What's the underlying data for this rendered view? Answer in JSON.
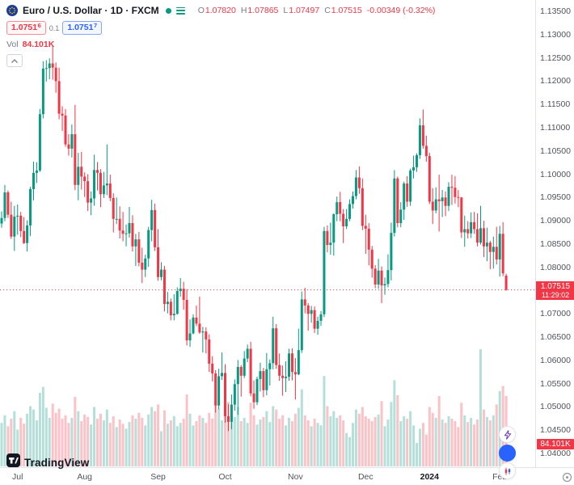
{
  "header": {
    "symbol_title": "Euro / U.S. Dollar · 1D · FXCM",
    "ohlc": {
      "o_label": "O",
      "o": "1.07820",
      "h_label": "H",
      "h": "1.07865",
      "l_label": "L",
      "l": "1.07497",
      "c_label": "C",
      "c": "1.07515",
      "change": "-0.00349 (-0.32%)"
    },
    "bid": "1.0751",
    "bid_sup": "6",
    "spread": "0.1",
    "ask": "1.0751",
    "ask_sup": "7",
    "vol_label": "Vol",
    "vol_value": "84.101K"
  },
  "price_label": {
    "price": "1.07515",
    "countdown": "11:29:02"
  },
  "volume_axis_label": "84.101K",
  "logo": {
    "text": "TradingView"
  },
  "colors": {
    "up_candle": "#089981",
    "down_candle": "#f23645",
    "vol_up": "rgba(8,153,129,0.30)",
    "vol_down": "rgba(242,54,69,0.30)",
    "accent_blue": "#2962ff",
    "badge_red": "#f23645",
    "axis_text": "#50535e"
  },
  "chart_data": {
    "type": "candlestick",
    "title": "Euro / U.S. Dollar · 1D · FXCM",
    "last_price": 1.07515,
    "price_axis": {
      "min": 1.04,
      "max": 1.135,
      "tick_step": 0.005,
      "ticks": [
        "1.13500",
        "1.13000",
        "1.12500",
        "1.12000",
        "1.11500",
        "1.11000",
        "1.10500",
        "1.10000",
        "1.09500",
        "1.09000",
        "1.08500",
        "1.08000",
        "1.07500",
        "1.07000",
        "1.06500",
        "1.06000",
        "1.05500",
        "1.05000",
        "1.04500",
        "1.04000"
      ]
    },
    "time_labels": [
      {
        "label": "Jul",
        "i": 5
      },
      {
        "label": "Aug",
        "i": 26
      },
      {
        "label": "Sep",
        "i": 49
      },
      {
        "label": "Oct",
        "i": 70
      },
      {
        "label": "Nov",
        "i": 92
      },
      {
        "label": "Dec",
        "i": 114
      },
      {
        "label": "2024",
        "i": 134,
        "major": true
      },
      {
        "label": "Feb",
        "i": 156
      }
    ],
    "candles": [
      [
        1.0894,
        1.092,
        1.0885,
        1.0906
      ],
      [
        1.0906,
        1.0977,
        1.0899,
        1.0961
      ],
      [
        1.0961,
        1.0965,
        1.0906,
        1.0913
      ],
      [
        1.0913,
        1.0941,
        1.0861,
        1.0866
      ],
      [
        1.0866,
        1.0932,
        1.0835,
        1.0909
      ],
      [
        1.0909,
        1.0935,
        1.087,
        1.0911
      ],
      [
        1.0911,
        1.0919,
        1.0865,
        1.0878
      ],
      [
        1.0878,
        1.0908,
        1.085,
        1.0852
      ],
      [
        1.0852,
        1.0901,
        1.0834,
        1.089
      ],
      [
        1.089,
        1.0973,
        1.0867,
        1.0968
      ],
      [
        1.0968,
        1.1027,
        1.0944,
        1.1003
      ],
      [
        1.1003,
        1.1026,
        1.0981,
        1.1008
      ],
      [
        1.1008,
        1.114,
        1.1005,
        1.1129
      ],
      [
        1.1129,
        1.1243,
        1.112,
        1.1227
      ],
      [
        1.1227,
        1.1245,
        1.1199,
        1.1228
      ],
      [
        1.1228,
        1.1249,
        1.1204,
        1.1238
      ],
      [
        1.1238,
        1.1276,
        1.1203,
        1.1229
      ],
      [
        1.1229,
        1.124,
        1.1175,
        1.12
      ],
      [
        1.12,
        1.1229,
        1.1118,
        1.113
      ],
      [
        1.113,
        1.1146,
        1.1093,
        1.1126
      ],
      [
        1.1126,
        1.114,
        1.1059,
        1.1064
      ],
      [
        1.1064,
        1.1086,
        1.104,
        1.1055
      ],
      [
        1.1055,
        1.1107,
        1.1036,
        1.1086
      ],
      [
        1.1086,
        1.1149,
        1.0966,
        1.0977
      ],
      [
        1.0977,
        1.1046,
        1.0944,
        1.1016
      ],
      [
        1.1016,
        1.1048,
        1.0967,
        1.0995
      ],
      [
        1.0995,
        1.1004,
        1.0951,
        1.0985
      ],
      [
        1.0985,
        1.1,
        1.0921,
        1.0939
      ],
      [
        1.0939,
        1.0963,
        1.0912,
        1.0948
      ],
      [
        1.0948,
        1.1042,
        1.0932,
        1.1009
      ],
      [
        1.1009,
        1.1026,
        1.0965,
        1.1003
      ],
      [
        1.1003,
        1.1011,
        1.0929,
        1.0957
      ],
      [
        1.0957,
        1.1005,
        1.0949,
        1.0976
      ],
      [
        1.0976,
        1.1064,
        1.0955,
        1.098
      ],
      [
        1.098,
        1.0999,
        1.0942,
        1.0949
      ],
      [
        1.0949,
        1.0959,
        1.0875,
        1.0904
      ],
      [
        1.0904,
        1.095,
        1.0893,
        1.0904
      ],
      [
        1.0904,
        1.0931,
        1.0862,
        1.0879
      ],
      [
        1.0879,
        1.0919,
        1.0856,
        1.0872
      ],
      [
        1.0872,
        1.0892,
        1.0845,
        1.0873
      ],
      [
        1.0873,
        1.093,
        1.0864,
        1.0895
      ],
      [
        1.0895,
        1.0912,
        1.0834,
        1.0845
      ],
      [
        1.0845,
        1.0872,
        1.0803,
        1.086
      ],
      [
        1.086,
        1.0876,
        1.0802,
        1.081
      ],
      [
        1.081,
        1.0842,
        1.0766,
        1.0795
      ],
      [
        1.0795,
        1.0827,
        1.0779,
        1.0819
      ],
      [
        1.0819,
        1.0887,
        1.0801,
        1.088
      ],
      [
        1.088,
        1.0945,
        1.0856,
        1.0923
      ],
      [
        1.0923,
        1.0937,
        1.0835,
        1.0843
      ],
      [
        1.0843,
        1.0882,
        1.0771,
        1.0779
      ],
      [
        1.0779,
        1.0811,
        1.0772,
        1.0795
      ],
      [
        1.0795,
        1.0803,
        1.0705,
        1.0721
      ],
      [
        1.0721,
        1.0747,
        1.0701,
        1.0726
      ],
      [
        1.0726,
        1.0733,
        1.0686,
        1.0697
      ],
      [
        1.0697,
        1.0742,
        1.0686,
        1.07
      ],
      [
        1.07,
        1.0757,
        1.0698,
        1.0749
      ],
      [
        1.0749,
        1.0777,
        1.0737,
        1.0754
      ],
      [
        1.0754,
        1.0769,
        1.0709,
        1.073
      ],
      [
        1.073,
        1.0753,
        1.0632,
        1.0643
      ],
      [
        1.0643,
        1.0688,
        1.0629,
        1.0658
      ],
      [
        1.0658,
        1.0699,
        1.0656,
        1.0692
      ],
      [
        1.0692,
        1.0718,
        1.0674,
        1.0679
      ],
      [
        1.0679,
        1.0737,
        1.0657,
        1.066
      ],
      [
        1.066,
        1.0672,
        1.0617,
        1.0662
      ],
      [
        1.0662,
        1.0671,
        1.0615,
        1.0645
      ],
      [
        1.0645,
        1.0656,
        1.0575,
        1.0593
      ],
      [
        1.0593,
        1.0609,
        1.0555,
        1.0572
      ],
      [
        1.0572,
        1.0579,
        1.0488,
        1.0503
      ],
      [
        1.0503,
        1.0582,
        1.0495,
        1.0566
      ],
      [
        1.0566,
        1.0617,
        1.0558,
        1.0573
      ],
      [
        1.0573,
        1.0592,
        1.0466,
        1.048
      ],
      [
        1.048,
        1.0506,
        1.0448,
        1.0468
      ],
      [
        1.0468,
        1.0527,
        1.0452,
        1.0505
      ],
      [
        1.0505,
        1.0559,
        1.0492,
        1.0549
      ],
      [
        1.0549,
        1.0601,
        1.0483,
        1.0586
      ],
      [
        1.0586,
        1.059,
        1.0522,
        1.0567
      ],
      [
        1.0567,
        1.062,
        1.0562,
        1.0604
      ],
      [
        1.0604,
        1.0634,
        1.0596,
        1.0625
      ],
      [
        1.0625,
        1.064,
        1.0523,
        1.0529
      ],
      [
        1.0529,
        1.0557,
        1.0496,
        1.051
      ],
      [
        1.051,
        1.0565,
        1.0504,
        1.056
      ],
      [
        1.056,
        1.0595,
        1.0533,
        1.0577
      ],
      [
        1.0577,
        1.0584,
        1.0521,
        1.0536
      ],
      [
        1.0536,
        1.0616,
        1.0525,
        1.0581
      ],
      [
        1.0581,
        1.0602,
        1.0546,
        1.0594
      ],
      [
        1.0594,
        1.0694,
        1.0581,
        1.0669
      ],
      [
        1.0669,
        1.0678,
        1.0582,
        1.059
      ],
      [
        1.059,
        1.0615,
        1.0556,
        1.0567
      ],
      [
        1.0567,
        1.0589,
        1.0524,
        1.0562
      ],
      [
        1.0562,
        1.0598,
        1.0532,
        1.0565
      ],
      [
        1.0565,
        1.0625,
        1.0556,
        1.0615
      ],
      [
        1.0615,
        1.0626,
        1.0557,
        1.0575
      ],
      [
        1.0575,
        1.0605,
        1.0516,
        1.057
      ],
      [
        1.057,
        1.0668,
        1.0568,
        1.0622
      ],
      [
        1.0622,
        1.0748,
        1.0616,
        1.0731
      ],
      [
        1.0731,
        1.0756,
        1.0701,
        1.0718
      ],
      [
        1.0718,
        1.0723,
        1.0664,
        1.07
      ],
      [
        1.07,
        1.0717,
        1.0681,
        1.0708
      ],
      [
        1.0708,
        1.0716,
        1.0659,
        1.0668
      ],
      [
        1.0668,
        1.0694,
        1.0655,
        1.0685
      ],
      [
        1.0685,
        1.0706,
        1.0674,
        1.0699
      ],
      [
        1.0699,
        1.0887,
        1.0693,
        1.0878
      ],
      [
        1.0878,
        1.089,
        1.0832,
        1.0848
      ],
      [
        1.0848,
        1.0896,
        1.0827,
        1.0853
      ],
      [
        1.0853,
        1.0916,
        1.0825,
        1.0914
      ],
      [
        1.0914,
        1.0952,
        1.0899,
        1.094
      ],
      [
        1.094,
        1.0962,
        1.0899,
        1.0915
      ],
      [
        1.0915,
        1.0925,
        1.0852,
        1.0888
      ],
      [
        1.0888,
        1.0925,
        1.0882,
        1.0904
      ],
      [
        1.0904,
        1.0946,
        1.0899,
        1.0936
      ],
      [
        1.0936,
        1.0963,
        1.0926,
        1.0953
      ],
      [
        1.0953,
        1.1009,
        1.0946,
        1.0993
      ],
      [
        1.0993,
        1.1017,
        1.0958,
        1.097
      ],
      [
        1.097,
        1.0991,
        1.088,
        1.0889
      ],
      [
        1.0889,
        1.0913,
        1.0829,
        1.0883
      ],
      [
        1.0883,
        1.0895,
        1.0804,
        1.0838
      ],
      [
        1.0838,
        1.0846,
        1.0778,
        1.0797
      ],
      [
        1.0797,
        1.0805,
        1.0755,
        1.0763
      ],
      [
        1.0763,
        1.0818,
        1.0754,
        1.0793
      ],
      [
        1.0793,
        1.0802,
        1.0723,
        1.0761
      ],
      [
        1.0761,
        1.0778,
        1.0741,
        1.0764
      ],
      [
        1.0764,
        1.0828,
        1.0757,
        1.0794
      ],
      [
        1.0794,
        1.0896,
        1.0772,
        1.0874
      ],
      [
        1.0874,
        1.1009,
        1.0866,
        1.0991
      ],
      [
        1.0991,
        1.0995,
        1.0886,
        1.0895
      ],
      [
        1.0895,
        1.094,
        1.0886,
        1.0924
      ],
      [
        1.0924,
        1.0984,
        1.0902,
        1.098
      ],
      [
        1.098,
        1.0996,
        1.093,
        1.0941
      ],
      [
        1.0941,
        1.1012,
        1.0932,
        1.1008
      ],
      [
        1.1008,
        1.104,
        1.0991,
        1.1015
      ],
      [
        1.1015,
        1.1045,
        1.1005,
        1.1041
      ],
      [
        1.1041,
        1.112,
        1.1033,
        1.1105
      ],
      [
        1.1105,
        1.1139,
        1.1055,
        1.1061
      ],
      [
        1.1061,
        1.1083,
        1.1027,
        1.1039
      ],
      [
        1.1039,
        1.1046,
        1.0936,
        1.0941
      ],
      [
        1.0941,
        1.097,
        1.0893,
        1.0922
      ],
      [
        1.0922,
        1.0972,
        1.0916,
        1.0946
      ],
      [
        1.0946,
        1.0999,
        1.0877,
        1.0942
      ],
      [
        1.0942,
        1.0966,
        1.0908,
        1.095
      ],
      [
        1.095,
        1.0963,
        1.091,
        1.0932
      ],
      [
        1.0932,
        1.0983,
        1.0921,
        1.0973
      ],
      [
        1.0973,
        1.0999,
        1.0934,
        1.0971
      ],
      [
        1.0971,
        1.0996,
        1.0937,
        1.0951
      ],
      [
        1.0951,
        1.0966,
        1.0929,
        1.095
      ],
      [
        1.095,
        1.0951,
        1.0863,
        1.0875
      ],
      [
        1.0875,
        1.0911,
        1.0844,
        1.0882
      ],
      [
        1.0882,
        1.0899,
        1.0862,
        1.0873
      ],
      [
        1.0873,
        1.0918,
        1.0863,
        1.0897
      ],
      [
        1.0897,
        1.0919,
        1.0872,
        1.0882
      ],
      [
        1.0882,
        1.0916,
        1.0845,
        1.0853
      ],
      [
        1.0853,
        1.0932,
        1.0849,
        1.0884
      ],
      [
        1.0884,
        1.09,
        1.0822,
        1.0845
      ],
      [
        1.0845,
        1.0885,
        1.0813,
        1.0853
      ],
      [
        1.0853,
        1.0857,
        1.0796,
        1.0833
      ],
      [
        1.0833,
        1.0866,
        1.0797,
        1.0844
      ],
      [
        1.0844,
        1.0887,
        1.0806,
        1.0817
      ],
      [
        1.0817,
        1.0889,
        1.078,
        1.0872
      ],
      [
        1.0872,
        1.0897,
        1.0781,
        1.0787
      ],
      [
        1.0782,
        1.07865,
        1.07497,
        1.07515
      ]
    ],
    "volumes": [
      52,
      61,
      48,
      57,
      66,
      44,
      58,
      51,
      63,
      72,
      68,
      55,
      88,
      95,
      70,
      58,
      75,
      64,
      69,
      57,
      61,
      52,
      58,
      83,
      66,
      54,
      62,
      59,
      50,
      71,
      57,
      63,
      55,
      68,
      52,
      60,
      47,
      56,
      51,
      45,
      53,
      61,
      57,
      64,
      58,
      49,
      62,
      71,
      66,
      74,
      42,
      67,
      51,
      55,
      60,
      48,
      52,
      57,
      86,
      63,
      49,
      54,
      61,
      58,
      52,
      64,
      57,
      78,
      69,
      55,
      82,
      77,
      65,
      59,
      71,
      54,
      58,
      52,
      76,
      61,
      50,
      56,
      59,
      66,
      53,
      72,
      68,
      57,
      61,
      49,
      58,
      54,
      63,
      70,
      92,
      61,
      55,
      48,
      57,
      52,
      49,
      108,
      72,
      60,
      66,
      58,
      61,
      55,
      40,
      35,
      52,
      68,
      63,
      71,
      60,
      57,
      54,
      59,
      62,
      78,
      48,
      56,
      77,
      103,
      85,
      54,
      60,
      57,
      66,
      49,
      28,
      45,
      52,
      38,
      71,
      64,
      58,
      84,
      56,
      52,
      60,
      57,
      54,
      47,
      76,
      61,
      53,
      58,
      50,
      56,
      140,
      68,
      59,
      55,
      61,
      74,
      90,
      96,
      84.101
    ]
  }
}
